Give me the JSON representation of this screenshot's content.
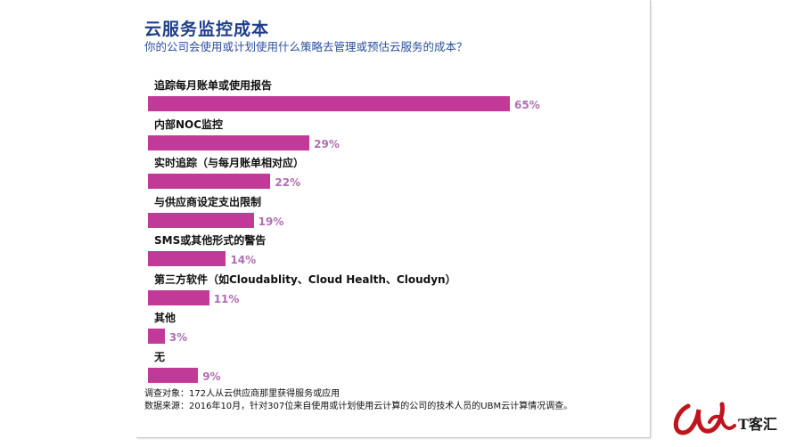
{
  "header": {
    "title": "云服务监控成本",
    "subtitle": "你的公司会使用或计划使用什么策略去管理或预估云服务的成本？"
  },
  "chart_data": {
    "type": "bar",
    "orientation": "horizontal",
    "title": "云服务监控成本",
    "subtitle": "你的公司会使用或计划使用什么策略去管理或预估云服务的成本？",
    "categories": [
      "追踪每月账单或使用报告",
      "内部NOC监控",
      "实时追踪（与每月账单相对应）",
      "与供应商设定支出限制",
      "SMS或其他形式的警告",
      "第三方软件（如Cloudablity、Cloud Health、Cloudyn）",
      "其他",
      "无"
    ],
    "values": [
      65,
      29,
      22,
      19,
      14,
      11,
      3,
      9
    ],
    "value_labels": [
      "65%",
      "29%",
      "22%",
      "19%",
      "14%",
      "11%",
      "3%",
      "9%"
    ],
    "unit": "%",
    "xlim": [
      0,
      100
    ],
    "grid": false,
    "bar_color": "#c13a98",
    "value_label_color": "#b06fb0"
  },
  "notes": {
    "survey": "调查对象：172人从云供应商那里获得服务或应用",
    "source": "数据来源：2016年10月，针对307位来自使用或计划使用云计算的公司的技术人员的UBM云计算情况调查。"
  },
  "watermark": {
    "text": "T客汇",
    "color": "#c0141c"
  }
}
